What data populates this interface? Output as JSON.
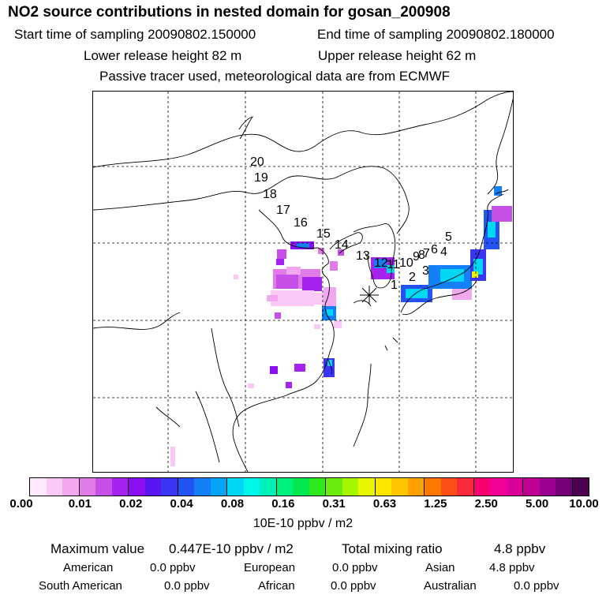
{
  "header": {
    "title": "NO2 source contributions in nested domain for gosan_200908",
    "start_time": "Start time of sampling 20090802.150000",
    "end_time": "End time of sampling 20090802.180000",
    "lower_height": "Lower release height   82 m",
    "upper_height": "Upper release height   62 m",
    "tracer_note": "Passive tracer used, meteorological data are from ECMWF"
  },
  "map": {
    "trajectory_labels": [
      "1",
      "2",
      "3",
      "4",
      "5",
      "6",
      "7",
      "8",
      "9",
      "10",
      "11",
      "12",
      "13",
      "14",
      "15",
      "16",
      "17",
      "18",
      "19",
      "20"
    ],
    "release_site_marker": "asterisk"
  },
  "colorbar": {
    "colors": [
      "#fde9fb",
      "#f9c8f4",
      "#f1a8ee",
      "#e07be8",
      "#c64fe8",
      "#a623ef",
      "#8b0ff2",
      "#5a16f0",
      "#3b36f3",
      "#2453f3",
      "#1380f5",
      "#04a5f7",
      "#00d7f5",
      "#00f6e9",
      "#00f0b7",
      "#00f07c",
      "#00e84c",
      "#2ee81c",
      "#6cec0e",
      "#a8f500",
      "#e8f600",
      "#fbe500",
      "#fdc500",
      "#fda000",
      "#fd7800",
      "#fd4e16",
      "#f92a3c",
      "#f8006f",
      "#f20098",
      "#d80098",
      "#be0094",
      "#9a0090",
      "#740078",
      "#4e0050"
    ],
    "tick_labels": [
      "0.00",
      "0.01",
      "0.02",
      "0.04",
      "0.08",
      "0.16",
      "0.31",
      "0.63",
      "1.25",
      "2.50",
      "5.00",
      "10.00"
    ],
    "unit": "10E-10 ppbv / m2"
  },
  "stats": {
    "max_label": "Maximum value",
    "max_value": "0.447E-10 ppbv / m2",
    "total_label": "Total mixing ratio",
    "total_value": "4.8 ppbv",
    "regions": [
      {
        "name": "American",
        "value": "0.0 ppbv"
      },
      {
        "name": "European",
        "value": "0.0 ppbv"
      },
      {
        "name": "Asian",
        "value": "4.8 ppbv"
      },
      {
        "name": "South American",
        "value": "0.0 ppbv"
      },
      {
        "name": "African",
        "value": "0.0 ppbv"
      },
      {
        "name": "Australian",
        "value": "0.0 ppbv"
      }
    ]
  }
}
